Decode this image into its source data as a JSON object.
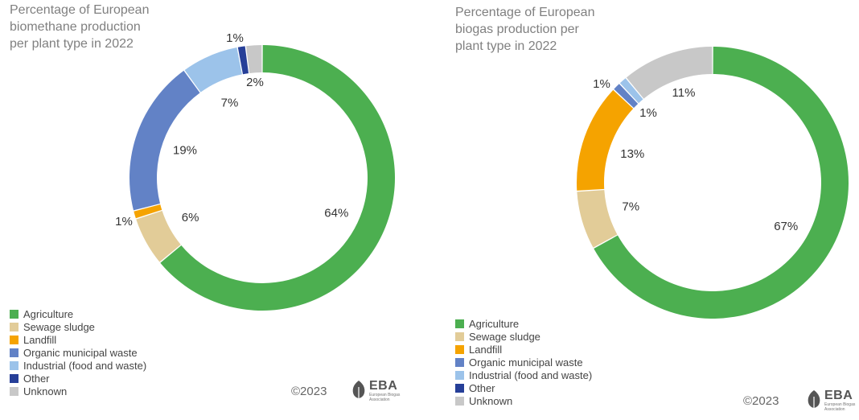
{
  "legend_colors": {
    "Agriculture": "#4caf50",
    "Sewage sludge": "#e2cc98",
    "Landfill": "#f5a300",
    "Organic municipal waste": "#6282c6",
    "Industrial (food and waste)": "#9cc3ea",
    "Other": "#263f98",
    "Unknown": "#c8c8c8"
  },
  "copyright": "©2023",
  "logo": {
    "text": "EBA",
    "subtext": "European Biogas\nAssociation",
    "icon": "leaf-icon"
  },
  "chart_data": [
    {
      "type": "pie",
      "variant": "donut",
      "title": "Percentage of European\nbiomethane production\nper plant type in 2022",
      "categories": [
        "Agriculture",
        "Sewage sludge",
        "Landfill",
        "Organic municipal waste",
        "Industrial (food and waste)",
        "Other",
        "Unknown"
      ],
      "values": [
        64,
        6,
        1,
        19,
        7,
        1,
        2
      ],
      "labels": [
        "64%",
        "6%",
        "1%",
        "19%",
        "7%",
        "1%",
        "2%"
      ],
      "legend": [
        "Agriculture",
        "Sewage sludge",
        "Landfill",
        "Organic municipal waste",
        "Industrial (food and waste)",
        "Other",
        "Unknown"
      ],
      "legend_position": "bottom-left"
    },
    {
      "type": "pie",
      "variant": "donut",
      "title": "Percentage of European\nbiogas production per\nplant type in 2022",
      "categories": [
        "Agriculture",
        "Sewage sludge",
        "Landfill",
        "Organic municipal waste",
        "Industrial (food and waste)",
        "Other",
        "Unknown"
      ],
      "values": [
        67,
        7,
        13,
        1,
        1,
        0,
        11
      ],
      "labels": [
        "67%",
        "7%",
        "13%",
        "1%",
        "1%",
        "",
        "11%"
      ],
      "legend": [
        "Agriculture",
        "Sewage sludge",
        "Landfill",
        "Organic municipal waste",
        "Industrial (food and waste)",
        "Other",
        "Unknown"
      ],
      "legend_position": "bottom-left"
    }
  ]
}
